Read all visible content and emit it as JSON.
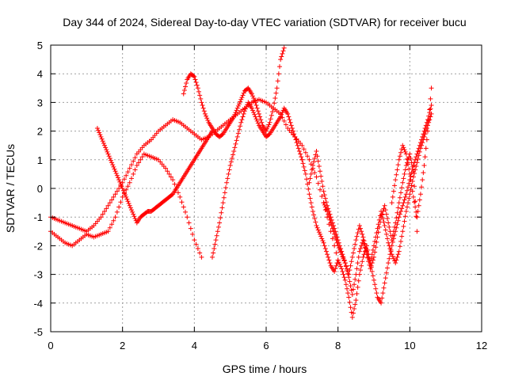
{
  "chart_data": {
    "type": "scatter",
    "title": "Day 344 of 2024, Sidereal Day-to-day VTEC variation (SDTVAR) for receiver bucu",
    "xlabel": "GPS time / hours",
    "ylabel": "SDTVAR / TECUs",
    "xlim": [
      0,
      12
    ],
    "ylim": [
      -5,
      5
    ],
    "x_ticks": [
      0,
      2,
      4,
      6,
      8,
      10,
      12
    ],
    "y_ticks": [
      -5,
      -4,
      -3,
      -2,
      -1,
      0,
      1,
      2,
      3,
      4,
      5
    ],
    "grid": true,
    "legend": "none",
    "marker": "+",
    "color": "#ff0000",
    "series": [
      {
        "x": [
          0.0,
          0.2,
          0.4,
          0.6,
          0.8,
          1.0,
          1.2,
          1.4,
          1.6,
          1.8,
          2.0,
          2.2,
          2.4,
          2.6,
          2.8,
          3.0,
          3.2,
          3.4,
          3.6,
          3.8,
          4.0,
          4.2,
          4.4,
          4.6,
          4.8,
          5.0,
          5.2,
          5.4,
          5.6,
          5.8,
          6.0,
          6.2,
          6.4,
          6.6,
          6.8,
          7.0,
          7.2,
          7.4,
          7.6,
          7.8,
          8.0
        ],
        "y": [
          -1.0,
          -1.1,
          -1.2,
          -1.3,
          -1.4,
          -1.5,
          -1.3,
          -1.0,
          -0.6,
          -0.2,
          0.2,
          0.7,
          1.2,
          1.5,
          1.7,
          2.0,
          2.2,
          2.4,
          2.3,
          2.1,
          1.9,
          1.7,
          1.8,
          2.0,
          2.2,
          2.4,
          2.6,
          2.8,
          3.0,
          3.1,
          3.0,
          2.8,
          2.6,
          2.1,
          1.8,
          1.5,
          1.0,
          0.4,
          -0.5,
          -1.5,
          -2.5
        ]
      },
      {
        "x": [
          0.0,
          0.2,
          0.4,
          0.6,
          0.8,
          1.0,
          1.2,
          1.4,
          1.6,
          1.8,
          2.0,
          2.2,
          2.4,
          2.6,
          2.8,
          3.0,
          3.2,
          3.4,
          3.6,
          3.8,
          4.0,
          4.2
        ],
        "y": [
          -1.5,
          -1.7,
          -1.9,
          -2.0,
          -1.8,
          -1.6,
          -1.7,
          -1.6,
          -1.5,
          -1.0,
          -0.3,
          0.2,
          0.8,
          1.2,
          1.1,
          1.0,
          0.7,
          0.3,
          -0.3,
          -1.0,
          -1.8,
          -2.4
        ]
      },
      {
        "x": [
          1.3,
          1.4,
          1.5,
          1.6,
          1.7,
          1.8,
          1.9,
          2.0,
          2.1,
          2.2,
          2.3,
          2.4,
          2.5,
          2.6,
          2.7,
          2.8,
          2.9,
          3.0,
          3.1,
          3.2,
          3.3,
          3.4,
          3.5,
          3.6,
          3.7,
          3.8,
          3.9,
          4.0,
          4.1,
          4.2,
          4.3,
          4.4,
          4.5
        ],
        "y": [
          2.1,
          1.8,
          1.5,
          1.2,
          0.9,
          0.6,
          0.3,
          0.0,
          -0.3,
          -0.6,
          -0.9,
          -1.2,
          -1.0,
          -0.9,
          -0.8,
          -0.8,
          -0.7,
          -0.6,
          -0.5,
          -0.4,
          -0.3,
          -0.2,
          0.0,
          0.2,
          0.4,
          0.6,
          0.8,
          1.0,
          1.2,
          1.4,
          1.6,
          1.8,
          2.0
        ]
      },
      {
        "x": [
          3.7,
          3.8,
          3.9,
          4.0,
          4.1,
          4.2,
          4.3,
          4.4,
          4.5,
          4.6,
          4.7,
          4.8,
          4.9,
          5.0,
          5.1,
          5.2,
          5.3,
          5.4,
          5.5,
          5.6,
          5.7,
          5.8,
          5.9,
          6.0,
          6.1,
          6.2,
          6.3,
          6.4,
          6.5
        ],
        "y": [
          3.3,
          3.8,
          4.0,
          3.9,
          3.5,
          3.0,
          2.6,
          2.3,
          2.1,
          1.9,
          1.8,
          1.9,
          2.1,
          2.3,
          2.5,
          2.8,
          3.1,
          3.4,
          3.5,
          3.3,
          3.0,
          2.6,
          2.2,
          2.0,
          2.3,
          2.8,
          3.5,
          4.5,
          4.9
        ]
      },
      {
        "x": [
          4.5,
          4.6,
          4.7,
          4.8,
          4.9,
          5.0,
          5.1,
          5.2,
          5.3,
          5.4,
          5.5,
          5.6,
          5.7,
          5.8,
          5.9,
          6.0,
          6.1,
          6.2,
          6.3,
          6.4,
          6.5,
          6.6,
          6.7,
          6.8,
          6.9,
          7.0
        ],
        "y": [
          -2.4,
          -1.8,
          -1.2,
          -0.5,
          0.2,
          0.8,
          1.3,
          1.8,
          2.3,
          2.7,
          3.0,
          2.8,
          2.5,
          2.2,
          2.0,
          1.8,
          1.9,
          2.1,
          2.3,
          2.5,
          2.8,
          2.6,
          2.2,
          1.8,
          1.4,
          1.0
        ]
      },
      {
        "x": [
          7.0,
          7.1,
          7.2,
          7.3,
          7.4,
          7.5,
          7.6,
          7.7,
          7.8,
          7.9,
          8.0,
          8.1,
          8.2,
          8.3,
          8.4,
          8.5,
          8.6,
          8.7,
          8.8,
          8.9,
          9.0,
          9.1,
          9.2,
          9.3,
          9.4,
          9.5,
          9.6,
          9.7,
          9.8,
          9.9,
          10.0,
          10.1,
          10.2,
          10.3,
          10.4,
          10.5,
          10.6
        ],
        "y": [
          1.0,
          0.5,
          -0.2,
          -0.8,
          -1.3,
          -1.6,
          -1.9,
          -2.3,
          -2.7,
          -2.9,
          -2.5,
          -2.8,
          -3.2,
          -3.8,
          -4.5,
          -3.9,
          -3.0,
          -2.4,
          -2.0,
          -2.6,
          -3.2,
          -3.8,
          -4.0,
          -3.3,
          -2.6,
          -2.0,
          -1.5,
          -1.0,
          -0.6,
          -0.2,
          0.3,
          0.8,
          1.2,
          1.6,
          2.0,
          2.4,
          2.9
        ]
      },
      {
        "x": [
          7.2,
          7.3,
          7.4,
          7.5,
          7.6,
          7.7,
          7.8,
          7.9,
          8.0,
          8.1,
          8.2,
          8.3,
          8.4,
          8.5,
          8.6,
          8.7,
          8.8,
          8.9,
          9.0,
          9.1,
          9.2,
          9.3,
          9.4,
          9.5,
          9.6,
          9.7,
          9.8,
          9.9,
          10.0,
          10.1,
          10.2,
          10.3,
          10.4,
          10.5,
          10.6
        ],
        "y": [
          0.2,
          0.8,
          1.3,
          0.6,
          -0.1,
          -0.6,
          -1.0,
          -1.4,
          -1.8,
          -2.2,
          -2.6,
          -3.0,
          -2.4,
          -1.8,
          -1.3,
          -1.7,
          -2.2,
          -2.6,
          -2.0,
          -1.4,
          -0.8,
          -1.3,
          -1.9,
          -2.3,
          -2.6,
          -2.2,
          -1.5,
          -0.8,
          -0.2,
          0.4,
          0.9,
          1.4,
          1.8,
          2.2,
          2.6
        ]
      },
      {
        "x": [
          7.6,
          7.7,
          7.8,
          7.9,
          8.0,
          8.1,
          8.2,
          8.3,
          8.4,
          8.5,
          8.6,
          8.7,
          8.8,
          8.9,
          9.0,
          9.1,
          9.2,
          9.3,
          9.4,
          9.5,
          9.6,
          9.7,
          9.8,
          9.9,
          10.0,
          10.1,
          10.2
        ],
        "y": [
          -0.5,
          -0.8,
          -1.2,
          -1.6,
          -2.0,
          -2.3,
          -2.6,
          -3.1,
          -3.7,
          -3.0,
          -2.2,
          -1.8,
          -2.3,
          -2.8,
          -2.4,
          -1.7,
          -1.0,
          -0.6,
          -1.2,
          -1.8,
          -1.2,
          -0.5,
          0.2,
          0.8,
          1.2,
          0.6,
          -1.5
        ]
      },
      {
        "x": [
          9.5,
          9.6,
          9.7,
          9.8,
          9.9,
          10.0,
          10.1,
          10.2,
          10.3,
          10.4,
          10.5,
          10.6
        ],
        "y": [
          -0.5,
          0.3,
          1.0,
          1.5,
          1.2,
          0.5,
          -0.3,
          -1.0,
          -0.2,
          0.8,
          2.0,
          3.5
        ]
      }
    ]
  }
}
